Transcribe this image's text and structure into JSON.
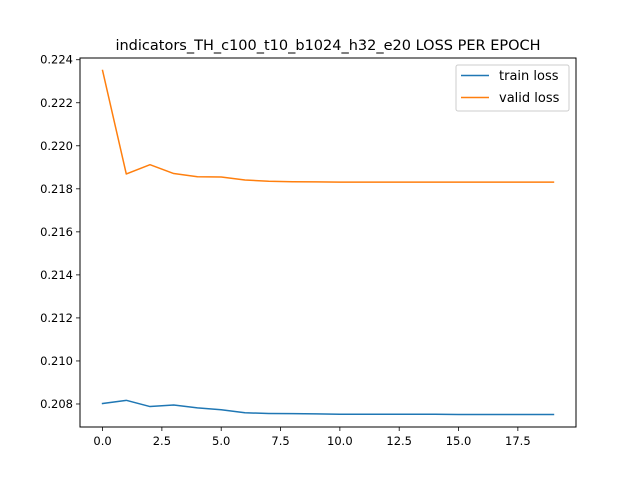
{
  "chart_data": {
    "type": "line",
    "title": "indicators_TH_c100_t10_b1024_h32_e20 LOSS PER EPOCH",
    "xlabel": "",
    "ylabel": "",
    "xlim": [
      -0.95,
      19.95
    ],
    "ylim": [
      0.20693,
      0.22408
    ],
    "xticks": [
      0,
      2.5,
      5,
      7.5,
      10,
      12.5,
      15,
      17.5
    ],
    "xtick_labels": [
      "0.0",
      "2.5",
      "5.0",
      "7.5",
      "10.0",
      "12.5",
      "15.0",
      "17.5"
    ],
    "yticks": [
      0.208,
      0.21,
      0.212,
      0.214,
      0.216,
      0.218,
      0.22,
      0.222,
      0.224
    ],
    "ytick_labels": [
      "0.208",
      "0.210",
      "0.212",
      "0.214",
      "0.216",
      "0.218",
      "0.220",
      "0.222",
      "0.224"
    ],
    "grid": false,
    "legend_position": "top-right",
    "x": [
      0,
      1,
      2,
      3,
      4,
      5,
      6,
      7,
      8,
      9,
      10,
      11,
      12,
      13,
      14,
      15,
      16,
      17,
      18,
      19
    ],
    "series": [
      {
        "name": "train loss",
        "color": "#1f77b4",
        "values": [
          0.20802,
          0.20817,
          0.20788,
          0.20795,
          0.20782,
          0.20773,
          0.20759,
          0.20756,
          0.20755,
          0.20754,
          0.20752,
          0.20752,
          0.20752,
          0.20752,
          0.20752,
          0.20751,
          0.20751,
          0.20751,
          0.20751,
          0.20751
        ]
      },
      {
        "name": "valid loss",
        "color": "#ff7f0e",
        "values": [
          0.2235,
          0.21869,
          0.21912,
          0.21871,
          0.21856,
          0.21855,
          0.21841,
          0.21835,
          0.21833,
          0.21832,
          0.21831,
          0.21831,
          0.21831,
          0.21831,
          0.21831,
          0.21831,
          0.21831,
          0.21831,
          0.21831,
          0.21831
        ]
      }
    ]
  }
}
